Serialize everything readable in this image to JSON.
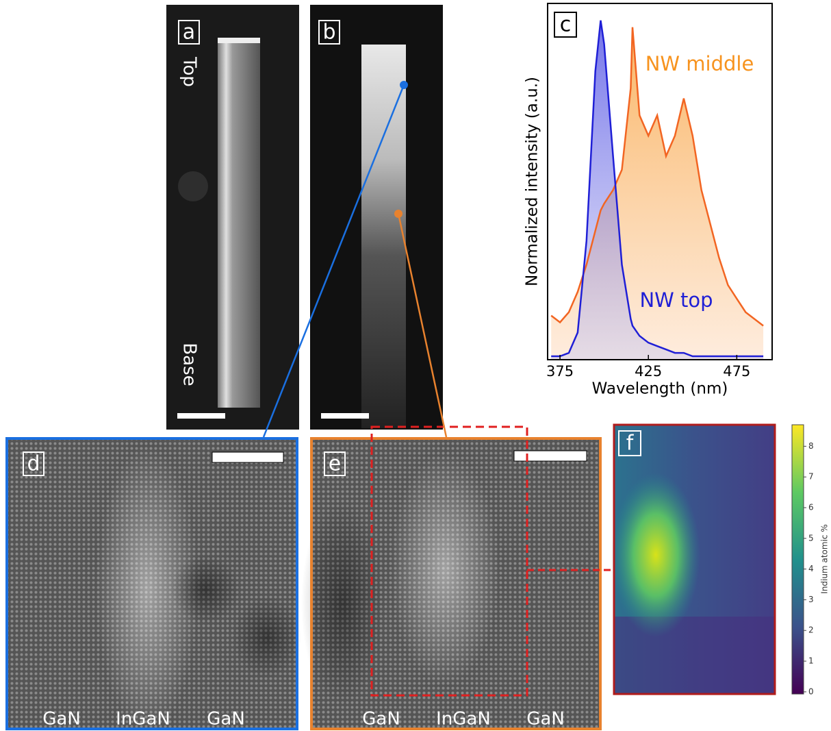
{
  "panels": [
    {
      "label": "a",
      "annotations": [
        "Top",
        "Base"
      ]
    },
    {
      "label": "b"
    },
    {
      "label": "d",
      "annotations": [
        "GaN",
        "InGaN",
        "GaN"
      ]
    },
    {
      "label": "e",
      "annotations": [
        "GaN",
        "InGaN",
        "GaN"
      ]
    },
    {
      "label": "f"
    }
  ],
  "chart_data": [
    {
      "type": "line",
      "panel_label": "c",
      "x_label": "Wavelength (nm)",
      "y_label": "Normalized intensity (a.u.)",
      "xlim": [
        368,
        495
      ],
      "ylim": [
        0,
        1.05
      ],
      "xticks": [
        375,
        425,
        475
      ],
      "x": [
        370,
        375,
        380,
        385,
        390,
        395,
        398,
        400,
        405,
        410,
        415,
        416,
        420,
        425,
        430,
        435,
        440,
        445,
        450,
        455,
        460,
        465,
        470,
        475,
        480,
        485,
        490
      ],
      "series": [
        {
          "name": "NW middle",
          "color": "#f26522",
          "values": [
            0.13,
            0.11,
            0.14,
            0.2,
            0.28,
            0.38,
            0.44,
            0.46,
            0.5,
            0.56,
            0.8,
            0.98,
            0.72,
            0.66,
            0.72,
            0.6,
            0.66,
            0.77,
            0.66,
            0.5,
            0.4,
            0.3,
            0.22,
            0.18,
            0.14,
            0.12,
            0.1
          ]
        },
        {
          "name": "NW top",
          "color": "#1f1fd6",
          "values": [
            0.01,
            0.01,
            0.02,
            0.08,
            0.35,
            0.85,
            1.0,
            0.93,
            0.6,
            0.28,
            0.12,
            0.1,
            0.07,
            0.05,
            0.04,
            0.03,
            0.02,
            0.02,
            0.01,
            0.01,
            0.01,
            0.01,
            0.01,
            0.01,
            0.01,
            0.01,
            0.01
          ]
        }
      ]
    },
    {
      "type": "colorbar",
      "label": "Indium atomic %",
      "ylim": [
        -0.07,
        8.7
      ],
      "yticks": [
        0,
        1,
        2,
        3,
        4,
        5,
        6,
        7,
        8
      ],
      "colors": [
        "#440154",
        "#3b528b",
        "#21918c",
        "#5ec962",
        "#fde725"
      ]
    }
  ]
}
